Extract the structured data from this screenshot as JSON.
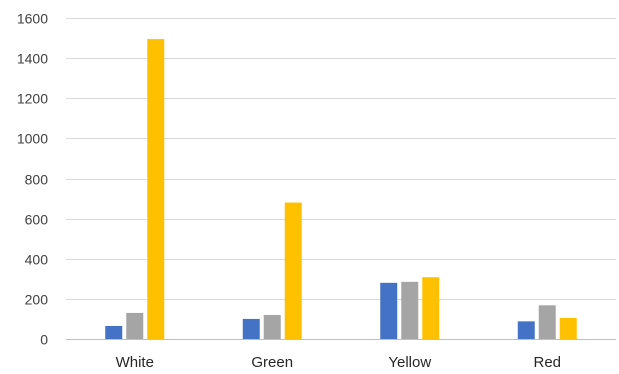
{
  "chart_data": {
    "type": "bar",
    "title": "",
    "xlabel": "",
    "ylabel": "",
    "ylim": [
      0,
      1600
    ],
    "yticks": [
      0,
      200,
      400,
      600,
      800,
      1000,
      1200,
      1400,
      1600
    ],
    "grid": true,
    "legend": "none",
    "categories": [
      "White",
      "Green",
      "Yellow",
      "Red"
    ],
    "series": [
      {
        "color": "#4472c4",
        "values": [
          65,
          100,
          280,
          88
        ]
      },
      {
        "color": "#a5a5a5",
        "values": [
          130,
          120,
          285,
          168
        ]
      },
      {
        "color": "#ffc000",
        "values": [
          1495,
          680,
          308,
          105
        ]
      }
    ]
  }
}
